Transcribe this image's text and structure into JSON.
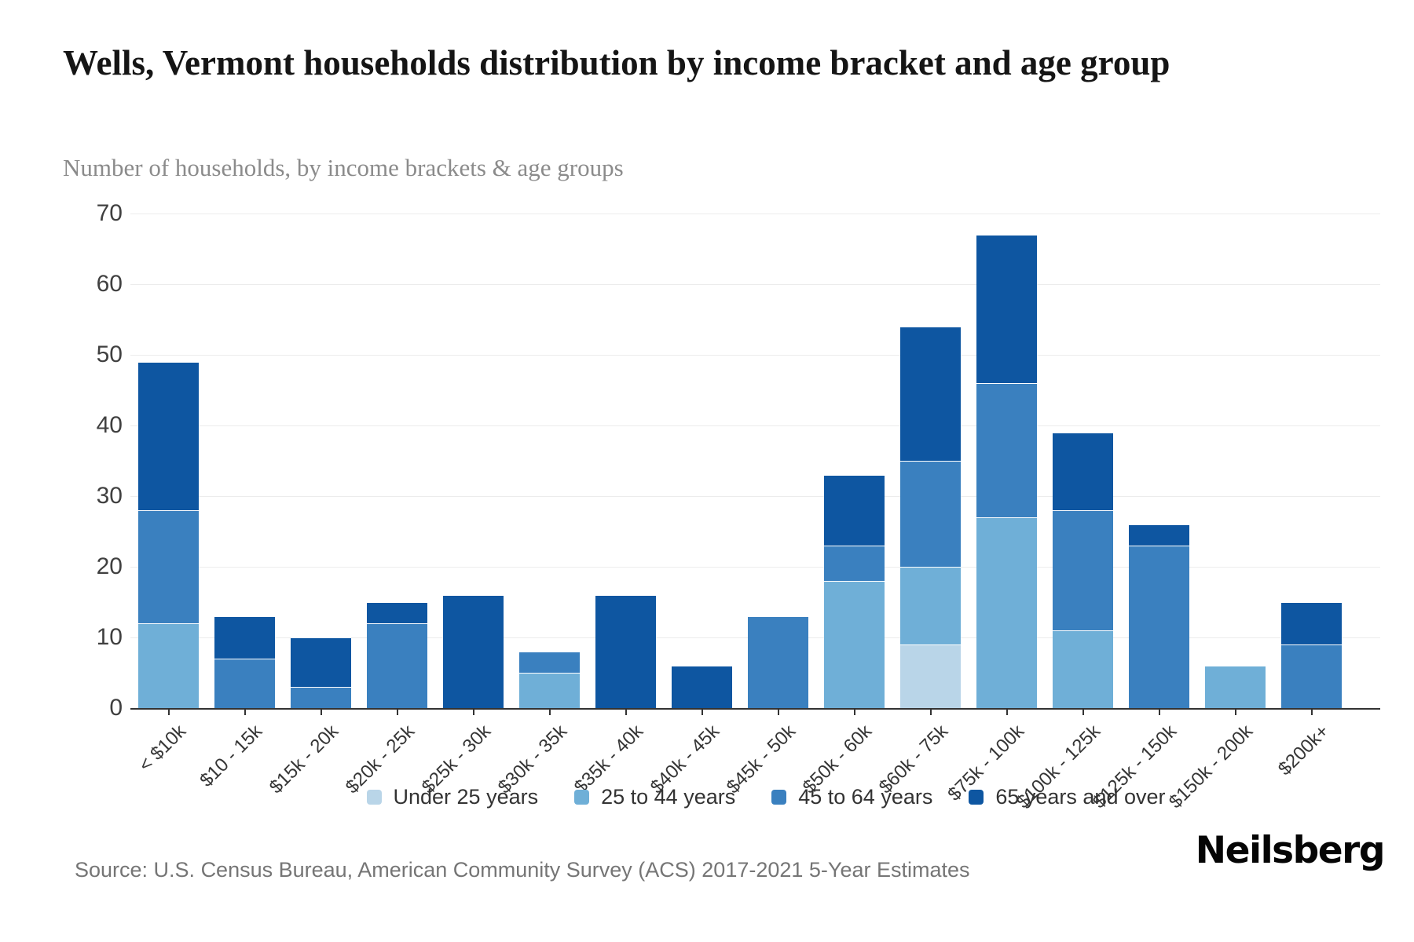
{
  "title": "Wells, Vermont households distribution by income bracket and age group",
  "subtitle": "Number of households, by income brackets & age groups",
  "source": "Source: U.S. Census Bureau, American Community Survey (ACS) 2017-2021 5-Year Estimates",
  "logo_text": "Neilsberg",
  "colors": {
    "under_25": "#b9d5e8",
    "age_25_44": "#6fafd7",
    "age_45_64": "#3a80bf",
    "age_65_over": "#0e56a1",
    "gridline": "#ececec",
    "axis": "#333333",
    "title_text": "#151515",
    "subtitle_text": "#8b8b8b",
    "source_text": "#757575"
  },
  "chart_data": {
    "type": "bar",
    "stacked": true,
    "title": "Wells, Vermont households distribution by income bracket and age group",
    "subtitle": "Number of households, by income brackets & age groups",
    "xlabel": "",
    "ylabel": "Number of households",
    "ylim": [
      0,
      70
    ],
    "yticks": [
      0,
      10,
      20,
      30,
      40,
      50,
      60,
      70
    ],
    "grid": "horizontal",
    "legend_position": "bottom",
    "categories": [
      "< $10k",
      "$10 - 15k",
      "$15k - 20k",
      "$20k - 25k",
      "$25k - 30k",
      "$30k - 35k",
      "$35k - 40k",
      "$40k - 45k",
      "$45k - 50k",
      "$50k - 60k",
      "$60k - 75k",
      "$75k - 100k",
      "$100k - 125k",
      "$125k - 150k",
      "$150k - 200k",
      "$200k+"
    ],
    "series": [
      {
        "name": "Under 25 years",
        "color": "#b9d5e8",
        "values": [
          0,
          0,
          0,
          0,
          0,
          0,
          0,
          0,
          0,
          0,
          9,
          0,
          0,
          0,
          0,
          0
        ]
      },
      {
        "name": "25 to 44 years",
        "color": "#6fafd7",
        "values": [
          12,
          0,
          0,
          0,
          0,
          5,
          0,
          0,
          0,
          18,
          11,
          27,
          11,
          0,
          6,
          0
        ]
      },
      {
        "name": "45 to 64 years",
        "color": "#3a80bf",
        "values": [
          16,
          7,
          3,
          12,
          0,
          3,
          0,
          0,
          13,
          5,
          15,
          19,
          17,
          23,
          0,
          9
        ]
      },
      {
        "name": "65 years and over",
        "color": "#0e56a1",
        "values": [
          21,
          6,
          7,
          3,
          16,
          0,
          16,
          6,
          0,
          10,
          19,
          21,
          11,
          3,
          0,
          6
        ]
      }
    ],
    "totals": [
      49,
      13,
      10,
      15,
      16,
      8,
      16,
      6,
      13,
      33,
      54,
      67,
      39,
      26,
      6,
      15
    ]
  }
}
